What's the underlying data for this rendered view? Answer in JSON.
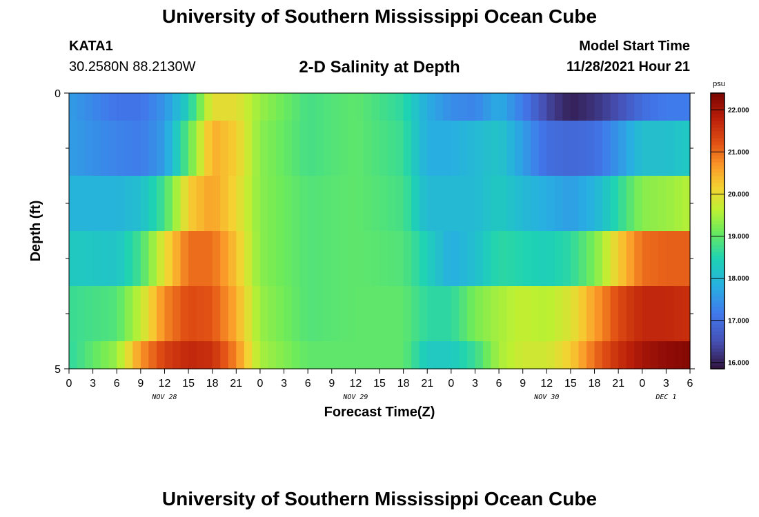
{
  "header": {
    "title": "University of Southern Mississippi Ocean Cube",
    "station_id": "KATA1",
    "coordinates": "30.2580N  88.2130W",
    "subtitle": "2-D Salinity at Depth",
    "model_start_label": "Model Start Time",
    "model_start_value": "11/28/2021 Hour 21"
  },
  "footer": {
    "title": "University of Southern Mississippi Ocean Cube"
  },
  "chart_data": {
    "type": "heatmap",
    "title": "2-D Salinity at Depth",
    "xlabel": "Forecast Time(Z)",
    "ylabel": "Depth (ft)",
    "x_tick_labels": [
      "0",
      "3",
      "6",
      "9",
      "12",
      "15",
      "18",
      "21",
      "0",
      "3",
      "6",
      "9",
      "12",
      "15",
      "18",
      "21",
      "0",
      "3",
      "6",
      "9",
      "12",
      "15",
      "18",
      "21",
      "0",
      "3",
      "6"
    ],
    "day_labels": [
      {
        "label": "NOV 28",
        "at_tick": 4
      },
      {
        "label": "NOV 29",
        "at_tick": 12
      },
      {
        "label": "NOV 30",
        "at_tick": 20
      },
      {
        "label": "DEC 1",
        "at_tick": 25
      }
    ],
    "y_tick_labels": [
      "0",
      "5"
    ],
    "y_range": [
      0,
      5
    ],
    "x_range_hours": [
      0,
      78
    ],
    "colorbar": {
      "unit": "psu",
      "range": [
        15.85,
        22.4
      ],
      "tick_values": [
        16,
        17,
        18,
        19,
        20,
        21,
        22
      ],
      "tick_labels": [
        "16.000",
        "17.000",
        "18.000",
        "19.000",
        "20.000",
        "21.000",
        "22.000"
      ]
    },
    "row_depth_bounds": [
      [
        0,
        0.5
      ],
      [
        0.5,
        1.5
      ],
      [
        1.5,
        2.5
      ],
      [
        2.5,
        3.5
      ],
      [
        3.5,
        4.5
      ],
      [
        4.5,
        5
      ]
    ],
    "key_hours": [
      0,
      6,
      9,
      12,
      15,
      18,
      21,
      24,
      30,
      36,
      42,
      45,
      48,
      51,
      54,
      57,
      60,
      63,
      66,
      69,
      72,
      75,
      78
    ],
    "values": [
      [
        17.6,
        17.1,
        17.1,
        17.5,
        18.4,
        20.0,
        20.0,
        19.4,
        18.8,
        19.0,
        18.6,
        17.8,
        17.4,
        17.3,
        17.8,
        17.2,
        16.4,
        16.0,
        16.2,
        16.5,
        17.0,
        17.2,
        17.2
      ],
      [
        17.6,
        17.3,
        17.2,
        17.6,
        19.0,
        20.5,
        20.2,
        19.3,
        18.8,
        19.0,
        18.7,
        17.8,
        17.8,
        18.0,
        18.2,
        17.6,
        17.0,
        16.9,
        17.0,
        17.5,
        18.1,
        18.1,
        18.3
      ],
      [
        17.9,
        17.9,
        18.1,
        18.8,
        20.2,
        20.6,
        20.1,
        19.3,
        18.9,
        19.0,
        18.8,
        18.0,
        18.0,
        18.0,
        18.3,
        18.0,
        17.8,
        17.6,
        17.9,
        18.6,
        19.3,
        19.4,
        19.6
      ],
      [
        18.3,
        18.2,
        18.8,
        20.0,
        21.0,
        21.0,
        20.3,
        19.3,
        18.9,
        19.0,
        18.9,
        18.4,
        17.8,
        18.1,
        18.6,
        18.5,
        18.4,
        18.6,
        19.2,
        20.2,
        21.0,
        21.1,
        21.1
      ],
      [
        18.7,
        18.9,
        19.7,
        20.8,
        21.3,
        21.2,
        20.5,
        19.4,
        18.9,
        19.0,
        19.0,
        18.6,
        18.6,
        19.2,
        19.5,
        19.7,
        19.6,
        19.9,
        20.6,
        21.3,
        21.7,
        21.7,
        21.6
      ],
      [
        18.6,
        19.4,
        20.7,
        21.4,
        21.7,
        21.6,
        20.8,
        19.5,
        19.0,
        19.0,
        19.0,
        18.3,
        18.3,
        18.7,
        19.5,
        19.8,
        19.8,
        20.2,
        21.0,
        21.6,
        22.0,
        22.2,
        22.3
      ]
    ]
  }
}
